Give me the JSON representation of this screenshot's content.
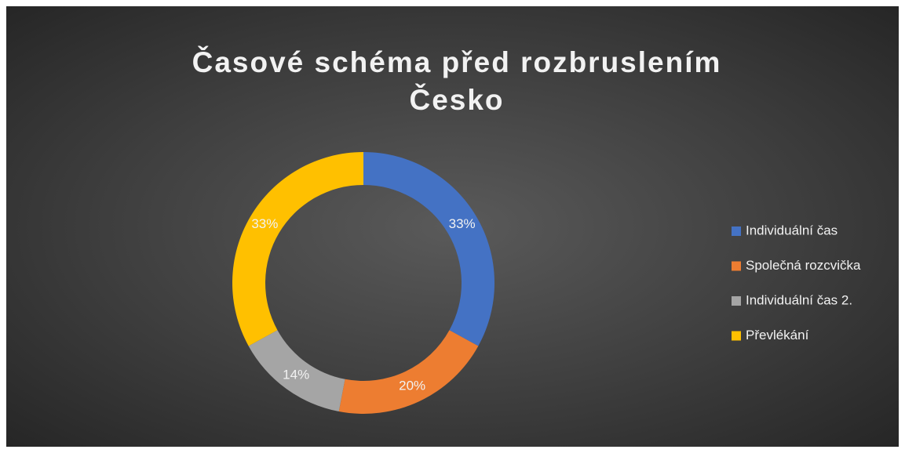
{
  "chart_data": {
    "type": "donut",
    "title": "Časové schéma před rozbruslením Česko",
    "categories": [
      "Individuální čas",
      "Společná rozcvička",
      "Individuální čas 2.",
      "Převlékání"
    ],
    "values": [
      33,
      20,
      14,
      33
    ],
    "value_labels": [
      "33%",
      "20%",
      "14%",
      "33%"
    ],
    "colors": [
      "#4472c4",
      "#ed7d31",
      "#a5a5a5",
      "#ffc000"
    ],
    "legend": "right"
  }
}
